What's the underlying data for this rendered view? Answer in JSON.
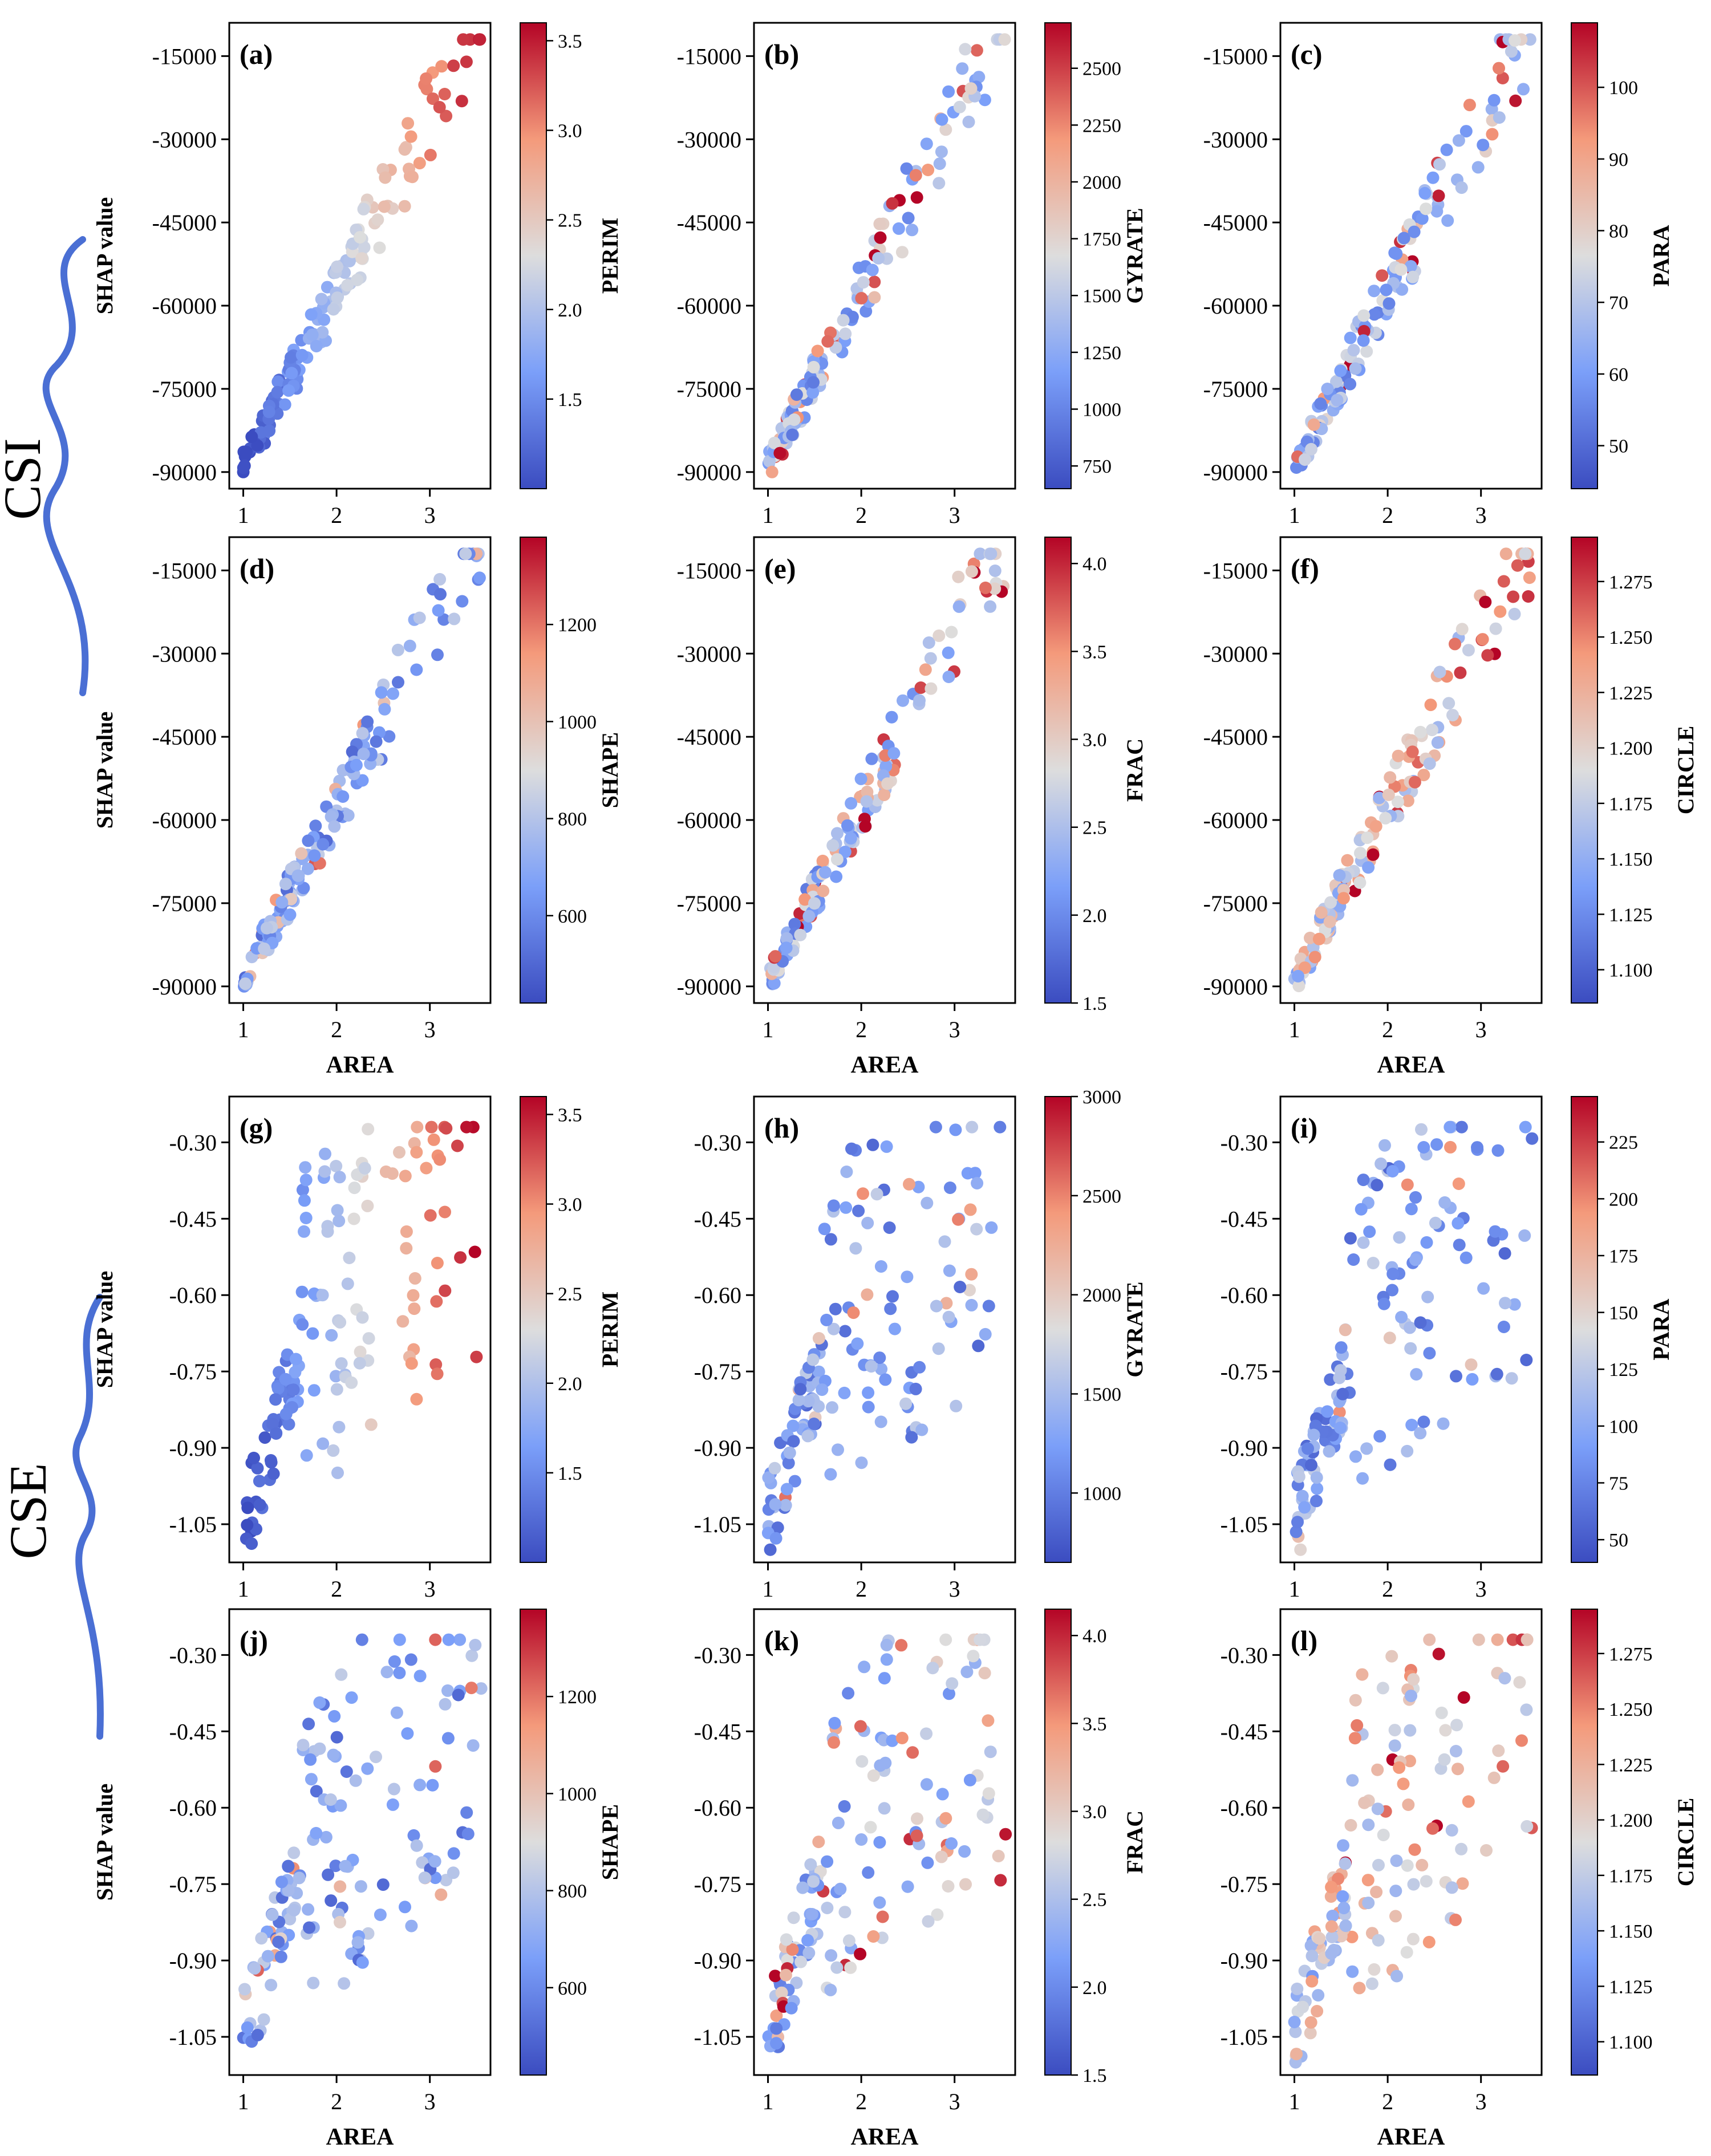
{
  "figure": {
    "group_labels": [
      "CSI",
      "CSE"
    ]
  },
  "chart_data": [
    {
      "panel": "(a)",
      "group": "CSI",
      "type": "scatter",
      "xlabel": "",
      "ylabel": "SHAP value",
      "xlim": [
        0.85,
        3.65
      ],
      "ylim": [
        -93000,
        -9000
      ],
      "xticks": [
        1,
        2,
        3
      ],
      "yticks": [
        -90000,
        -75000,
        -60000,
        -45000,
        -30000,
        -15000
      ],
      "ytick_labels": [
        "-90000",
        "-75000",
        "-60000",
        "-45000",
        "-30000",
        "-15000"
      ],
      "colorbar": {
        "label": "PERIM",
        "range": [
          1.0,
          3.6
        ],
        "ticks": [
          1.5,
          2.0,
          2.5,
          3.0,
          3.5
        ],
        "tick_labels": [
          "1.5",
          "2.0",
          "2.5",
          "3.0",
          "3.5"
        ]
      },
      "color_mode": "x",
      "seed": 11
    },
    {
      "panel": "(b)",
      "group": "CSI",
      "type": "scatter",
      "xlabel": "",
      "ylabel": "",
      "xlim": [
        0.85,
        3.65
      ],
      "ylim": [
        -93000,
        -9000
      ],
      "xticks": [
        1,
        2,
        3
      ],
      "yticks": [
        -90000,
        -75000,
        -60000,
        -45000,
        -30000,
        -15000
      ],
      "ytick_labels": [
        "-90000",
        "-75000",
        "-60000",
        "-45000",
        "-30000",
        "-15000"
      ],
      "colorbar": {
        "label": "GYRATE",
        "range": [
          650,
          2700
        ],
        "ticks": [
          750,
          1000,
          1250,
          1500,
          1750,
          2000,
          2250,
          2500
        ],
        "tick_labels": [
          "750",
          "1000",
          "1250",
          "1500",
          "1750",
          "2000",
          "2250",
          "2500"
        ]
      },
      "color_mode": "mixed",
      "seed": 23
    },
    {
      "panel": "(c)",
      "group": "CSI",
      "type": "scatter",
      "xlabel": "",
      "ylabel": "",
      "xlim": [
        0.85,
        3.65
      ],
      "ylim": [
        -93000,
        -9000
      ],
      "xticks": [
        1,
        2,
        3
      ],
      "yticks": [
        -90000,
        -75000,
        -60000,
        -45000,
        -30000,
        -15000
      ],
      "ytick_labels": [
        "-90000",
        "-75000",
        "-60000",
        "-45000",
        "-30000",
        "-15000"
      ],
      "colorbar": {
        "label": "PARA",
        "range": [
          44,
          109
        ],
        "ticks": [
          50,
          60,
          70,
          80,
          90,
          100
        ],
        "tick_labels": [
          "50",
          "60",
          "70",
          "80",
          "90",
          "100"
        ]
      },
      "color_mode": "mixed",
      "seed": 37
    },
    {
      "panel": "(d)",
      "group": "CSI",
      "type": "scatter",
      "xlabel": "AREA",
      "ylabel": "SHAP value",
      "xlim": [
        0.85,
        3.65
      ],
      "ylim": [
        -93000,
        -9000
      ],
      "xticks": [
        1,
        2,
        3
      ],
      "yticks": [
        -90000,
        -75000,
        -60000,
        -45000,
        -30000,
        -15000
      ],
      "ytick_labels": [
        "-90000",
        "-75000",
        "-60000",
        "-45000",
        "-30000",
        "-15000"
      ],
      "colorbar": {
        "label": "SHAPE",
        "range": [
          420,
          1380
        ],
        "ticks": [
          600,
          800,
          1000,
          1200
        ],
        "tick_labels": [
          "600",
          "800",
          "1000",
          "1200"
        ]
      },
      "color_mode": "blue",
      "seed": 41
    },
    {
      "panel": "(e)",
      "group": "CSI",
      "type": "scatter",
      "xlabel": "AREA",
      "ylabel": "",
      "xlim": [
        0.85,
        3.65
      ],
      "ylim": [
        -93000,
        -9000
      ],
      "xticks": [
        1,
        2,
        3
      ],
      "yticks": [
        -90000,
        -75000,
        -60000,
        -45000,
        -30000,
        -15000
      ],
      "ytick_labels": [
        "-90000",
        "-75000",
        "-60000",
        "-45000",
        "-30000",
        "-15000"
      ],
      "colorbar": {
        "label": "FRAC",
        "range": [
          1.5,
          4.15
        ],
        "ticks": [
          1.5,
          2.0,
          2.5,
          3.0,
          3.5,
          4.0
        ],
        "tick_labels": [
          "1.5",
          "2.0",
          "2.5",
          "3.0",
          "3.5",
          "4.0"
        ]
      },
      "color_mode": "mixed",
      "seed": 53
    },
    {
      "panel": "(f)",
      "group": "CSI",
      "type": "scatter",
      "xlabel": "AREA",
      "ylabel": "",
      "xlim": [
        0.85,
        3.65
      ],
      "ylim": [
        -93000,
        -9000
      ],
      "xticks": [
        1,
        2,
        3
      ],
      "yticks": [
        -90000,
        -75000,
        -60000,
        -45000,
        -30000,
        -15000
      ],
      "ytick_labels": [
        "-90000",
        "-75000",
        "-60000",
        "-45000",
        "-30000",
        "-15000"
      ],
      "colorbar": {
        "label": "CIRCLE",
        "range": [
          1.085,
          1.295
        ],
        "ticks": [
          1.1,
          1.125,
          1.15,
          1.175,
          1.2,
          1.225,
          1.25,
          1.275
        ],
        "tick_labels": [
          "1.100",
          "1.125",
          "1.150",
          "1.175",
          "1.200",
          "1.225",
          "1.250",
          "1.275"
        ]
      },
      "color_mode": "red",
      "seed": 67
    },
    {
      "panel": "(g)",
      "group": "CSE",
      "type": "scatter",
      "xlabel": "",
      "ylabel": "SHAP value",
      "xlim": [
        0.85,
        3.65
      ],
      "ylim": [
        -1.125,
        -0.21
      ],
      "xticks": [
        1,
        2,
        3
      ],
      "yticks": [
        -1.05,
        -0.9,
        -0.75,
        -0.6,
        -0.45,
        -0.3
      ],
      "ytick_labels": [
        "-1.05",
        "-0.90",
        "-0.75",
        "-0.60",
        "-0.45",
        "-0.30"
      ],
      "colorbar": {
        "label": "PERIM",
        "range": [
          1.0,
          3.6
        ],
        "ticks": [
          1.5,
          2.0,
          2.5,
          3.0,
          3.5
        ],
        "tick_labels": [
          "1.5",
          "2.0",
          "2.5",
          "3.0",
          "3.5"
        ]
      },
      "color_mode": "x",
      "seed": 71
    },
    {
      "panel": "(h)",
      "group": "CSE",
      "type": "scatter",
      "xlabel": "",
      "ylabel": "",
      "xlim": [
        0.85,
        3.65
      ],
      "ylim": [
        -1.125,
        -0.21
      ],
      "xticks": [
        1,
        2,
        3
      ],
      "yticks": [
        -1.05,
        -0.9,
        -0.75,
        -0.6,
        -0.45,
        -0.3
      ],
      "ytick_labels": [
        "-1.05",
        "-0.90",
        "-0.75",
        "-0.60",
        "-0.45",
        "-0.30"
      ],
      "colorbar": {
        "label": "GYRATE",
        "range": [
          650,
          3000
        ],
        "ticks": [
          1000,
          1500,
          2000,
          2500,
          3000
        ],
        "tick_labels": [
          "1000",
          "1500",
          "2000",
          "2500",
          "3000"
        ]
      },
      "color_mode": "blue",
      "seed": 83
    },
    {
      "panel": "(i)",
      "group": "CSE",
      "type": "scatter",
      "xlabel": "",
      "ylabel": "",
      "xlim": [
        0.85,
        3.65
      ],
      "ylim": [
        -1.125,
        -0.21
      ],
      "xticks": [
        1,
        2,
        3
      ],
      "yticks": [
        -1.05,
        -0.9,
        -0.75,
        -0.6,
        -0.45,
        -0.3
      ],
      "ytick_labels": [
        "-1.05",
        "-0.90",
        "-0.75",
        "-0.60",
        "-0.45",
        "-0.30"
      ],
      "colorbar": {
        "label": "PARA",
        "range": [
          40,
          245
        ],
        "ticks": [
          50,
          75,
          100,
          125,
          150,
          175,
          200,
          225
        ],
        "tick_labels": [
          "50",
          "75",
          "100",
          "125",
          "150",
          "175",
          "200",
          "225"
        ]
      },
      "color_mode": "blue",
      "seed": 97
    },
    {
      "panel": "(j)",
      "group": "CSE",
      "type": "scatter",
      "xlabel": "AREA",
      "ylabel": "SHAP value",
      "xlim": [
        0.85,
        3.65
      ],
      "ylim": [
        -1.125,
        -0.21
      ],
      "xticks": [
        1,
        2,
        3
      ],
      "yticks": [
        -1.05,
        -0.9,
        -0.75,
        -0.6,
        -0.45,
        -0.3
      ],
      "ytick_labels": [
        "-1.05",
        "-0.90",
        "-0.75",
        "-0.60",
        "-0.45",
        "-0.30"
      ],
      "colorbar": {
        "label": "SHAPE",
        "range": [
          420,
          1380
        ],
        "ticks": [
          600,
          800,
          1000,
          1200
        ],
        "tick_labels": [
          "600",
          "800",
          "1000",
          "1200"
        ]
      },
      "color_mode": "blue",
      "seed": 103
    },
    {
      "panel": "(k)",
      "group": "CSE",
      "type": "scatter",
      "xlabel": "AREA",
      "ylabel": "",
      "xlim": [
        0.85,
        3.65
      ],
      "ylim": [
        -1.125,
        -0.21
      ],
      "xticks": [
        1,
        2,
        3
      ],
      "yticks": [
        -1.05,
        -0.9,
        -0.75,
        -0.6,
        -0.45,
        -0.3
      ],
      "ytick_labels": [
        "-1.05",
        "-0.90",
        "-0.75",
        "-0.60",
        "-0.45",
        "-0.30"
      ],
      "colorbar": {
        "label": "FRAC",
        "range": [
          1.5,
          4.15
        ],
        "ticks": [
          1.5,
          2.0,
          2.5,
          3.0,
          3.5,
          4.0
        ],
        "tick_labels": [
          "1.5",
          "2.0",
          "2.5",
          "3.0",
          "3.5",
          "4.0"
        ]
      },
      "color_mode": "mixed",
      "seed": 109
    },
    {
      "panel": "(l)",
      "group": "CSE",
      "type": "scatter",
      "xlabel": "AREA",
      "ylabel": "",
      "xlim": [
        0.85,
        3.65
      ],
      "ylim": [
        -1.125,
        -0.21
      ],
      "xticks": [
        1,
        2,
        3
      ],
      "yticks": [
        -1.05,
        -0.9,
        -0.75,
        -0.6,
        -0.45,
        -0.3
      ],
      "ytick_labels": [
        "-1.05",
        "-0.90",
        "-0.75",
        "-0.60",
        "-0.45",
        "-0.30"
      ],
      "colorbar": {
        "label": "CIRCLE",
        "range": [
          1.085,
          1.295
        ],
        "ticks": [
          1.1,
          1.125,
          1.15,
          1.175,
          1.2,
          1.225,
          1.25,
          1.275
        ],
        "tick_labels": [
          "1.100",
          "1.125",
          "1.150",
          "1.175",
          "1.200",
          "1.225",
          "1.250",
          "1.275"
        ]
      },
      "color_mode": "red",
      "seed": 127
    }
  ]
}
